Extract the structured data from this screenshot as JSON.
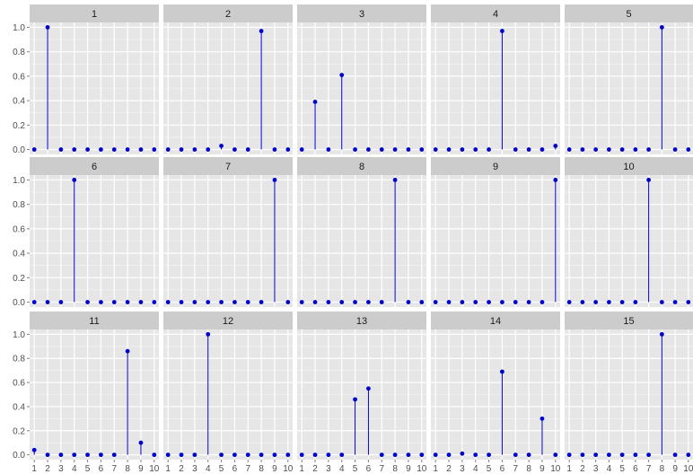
{
  "chart_data": {
    "type": "stem",
    "facet_layout": "3x5",
    "x": [
      1,
      2,
      3,
      4,
      5,
      6,
      7,
      8,
      9,
      10
    ],
    "ylim": [
      -0.04,
      1.04
    ],
    "y_ticks": [
      "0.0",
      "0.2",
      "0.4",
      "0.6",
      "0.8",
      "1.0"
    ],
    "x_ticks": [
      "1",
      "2",
      "3",
      "4",
      "5",
      "6",
      "7",
      "8",
      "9",
      "10"
    ],
    "grid": true,
    "panels": [
      {
        "label": "1",
        "values": [
          0,
          1.0,
          0,
          0,
          0,
          0,
          0,
          0,
          0,
          0
        ]
      },
      {
        "label": "2",
        "values": [
          0,
          0,
          0,
          0,
          0.03,
          0,
          0,
          0.97,
          0,
          0
        ]
      },
      {
        "label": "3",
        "values": [
          0,
          0.39,
          0,
          0.61,
          0,
          0,
          0,
          0,
          0,
          0
        ]
      },
      {
        "label": "4",
        "values": [
          0,
          0,
          0,
          0,
          0,
          0.97,
          0,
          0,
          0,
          0.03
        ]
      },
      {
        "label": "5",
        "values": [
          0,
          0,
          0,
          0,
          0,
          0,
          0,
          1.0,
          0,
          0
        ]
      },
      {
        "label": "6",
        "values": [
          0,
          0,
          0,
          1.0,
          0,
          0,
          0,
          0,
          0,
          0
        ]
      },
      {
        "label": "7",
        "values": [
          0,
          0,
          0,
          0,
          0,
          0,
          0,
          0,
          1.0,
          0
        ]
      },
      {
        "label": "8",
        "values": [
          0,
          0,
          0,
          0,
          0,
          0,
          0,
          1.0,
          0,
          0
        ]
      },
      {
        "label": "9",
        "values": [
          0,
          0,
          0,
          0,
          0,
          0,
          0,
          0,
          0,
          1.0
        ]
      },
      {
        "label": "10",
        "values": [
          0,
          0,
          0,
          0,
          0,
          0,
          1.0,
          0,
          0,
          0
        ]
      },
      {
        "label": "11",
        "values": [
          0.04,
          0,
          0,
          0,
          0,
          0,
          0,
          0.86,
          0.1,
          0
        ]
      },
      {
        "label": "12",
        "values": [
          0,
          0,
          0,
          1.0,
          0,
          0,
          0,
          0,
          0,
          0
        ]
      },
      {
        "label": "13",
        "values": [
          0,
          0,
          0,
          0,
          0.46,
          0.55,
          0,
          0,
          0,
          0
        ]
      },
      {
        "label": "14",
        "values": [
          0,
          0,
          0.01,
          0,
          0,
          0.69,
          0,
          0,
          0.3,
          0
        ]
      },
      {
        "label": "15",
        "values": [
          0,
          0,
          0,
          0,
          0,
          0,
          0,
          1.0,
          0,
          0
        ]
      }
    ]
  },
  "colors": {
    "point": "#0000cc",
    "panel_bg": "#e6e6e6",
    "grid": "#ffffff",
    "strip_bg": "#cccccc"
  }
}
